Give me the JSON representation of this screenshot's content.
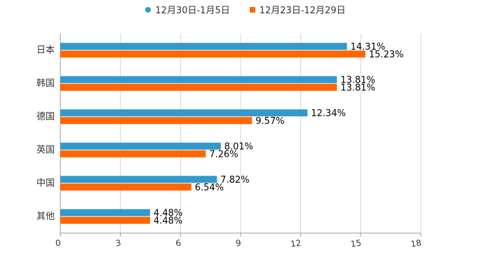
{
  "chart_data": {
    "type": "bar",
    "orientation": "horizontal",
    "categories": [
      "日本",
      "韩国",
      "德国",
      "英国",
      "中国",
      "其他"
    ],
    "series": [
      {
        "name": "12月30日-1月5日",
        "color": "#3399cc",
        "values": [
          14.31,
          13.81,
          12.34,
          8.01,
          7.82,
          4.48
        ],
        "labels": [
          "14.31%",
          "13.81%",
          "12.34%",
          "8.01%",
          "7.82%",
          "4.48%"
        ]
      },
      {
        "name": "12月23日-12月29日",
        "color": "#ff6600",
        "values": [
          15.23,
          13.81,
          9.57,
          7.26,
          6.54,
          4.48
        ],
        "labels": [
          "15.23%",
          "13.81%",
          "9.57%",
          "7.26%",
          "6.54%",
          "4.48%"
        ]
      }
    ],
    "xlim": [
      0,
      18
    ],
    "xticks": [
      "0",
      "3",
      "6",
      "9",
      "12",
      "15",
      "18"
    ],
    "grid": true,
    "legend_position": "top-center",
    "title": "",
    "xlabel": "",
    "ylabel": ""
  }
}
